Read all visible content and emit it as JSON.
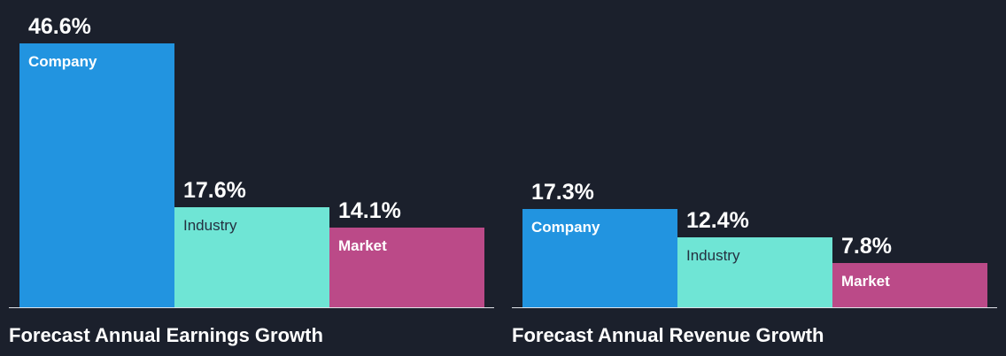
{
  "colors": {
    "company": "#2294e0",
    "industry": "#6fe5d5",
    "market": "#bb4a88",
    "background": "#1b202c"
  },
  "chart_data": [
    {
      "type": "bar",
      "title": "Forecast Annual Earnings Growth",
      "categories": [
        "Company",
        "Industry",
        "Market"
      ],
      "values": [
        46.6,
        17.6,
        14.1
      ],
      "value_labels": [
        "46.6%",
        "17.6%",
        "14.1%"
      ],
      "unit": "%",
      "ylim": [
        0,
        46.6
      ],
      "grid": false,
      "legend": "none"
    },
    {
      "type": "bar",
      "title": "Forecast Annual Revenue Growth",
      "categories": [
        "Company",
        "Industry",
        "Market"
      ],
      "values": [
        17.3,
        12.4,
        7.8
      ],
      "value_labels": [
        "17.3%",
        "12.4%",
        "7.8%"
      ],
      "unit": "%",
      "ylim": [
        0,
        46.6
      ],
      "grid": false,
      "legend": "none"
    }
  ]
}
